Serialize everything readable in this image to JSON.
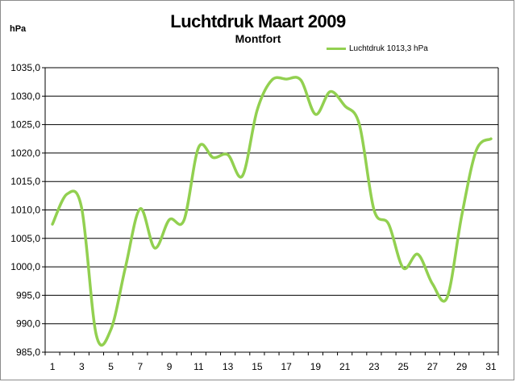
{
  "chart_data": {
    "type": "line",
    "title": "Luchtdruk Maart 2009",
    "subtitle": "Montfort",
    "ylabel": "hPa",
    "xlabel": "",
    "ylim": [
      985,
      1035
    ],
    "yticks": [
      "985,0",
      "990,0",
      "995,0",
      "1000,0",
      "1005,0",
      "1010,0",
      "1015,0",
      "1020,0",
      "1025,0",
      "1030,0",
      "1035,0"
    ],
    "xticks": [
      "1",
      "3",
      "5",
      "7",
      "9",
      "11",
      "13",
      "15",
      "17",
      "19",
      "21",
      "23",
      "25",
      "27",
      "29",
      "31"
    ],
    "grid": true,
    "legend_position": "top-right",
    "series": [
      {
        "name": "Luchtdruk 1013,3  hPa",
        "color": "#92d050",
        "x": [
          1,
          2,
          3,
          4,
          5,
          6,
          7,
          8,
          9,
          10,
          11,
          12,
          13,
          14,
          15,
          16,
          17,
          18,
          19,
          20,
          21,
          22,
          23,
          24,
          25,
          26,
          27,
          28,
          29,
          30,
          31
        ],
        "values": [
          1007.5,
          1012.8,
          1010.3,
          988.0,
          989.0,
          1000.0,
          1010.2,
          1003.3,
          1008.3,
          1008.2,
          1021.0,
          1019.2,
          1019.7,
          1016.0,
          1027.5,
          1032.8,
          1033.0,
          1032.8,
          1026.8,
          1030.8,
          1028.3,
          1025.0,
          1010.0,
          1007.5,
          999.8,
          1002.2,
          997.0,
          994.6,
          1009.0,
          1020.5,
          1022.5
        ]
      }
    ]
  }
}
